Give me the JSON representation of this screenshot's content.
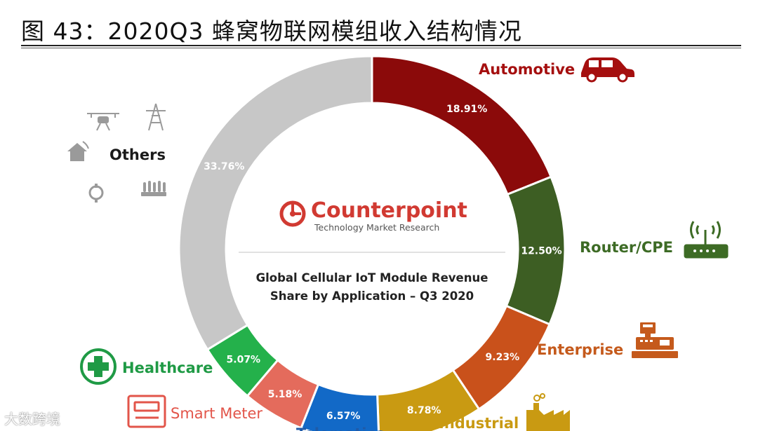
{
  "figure": {
    "title": "图 43：2020Q3 蜂窝物联网模组收入结构情况",
    "watermark": "大数跨境"
  },
  "chart_data": {
    "type": "pie",
    "subtype": "donut",
    "center_logo": "Counterpoint",
    "center_tagline": "Technology Market Research",
    "center_title_line1": "Global Cellular IoT Module Revenue",
    "center_title_line2": "Share by Application – Q3 2020",
    "slices": [
      {
        "label": "Automotive",
        "value": 18.91,
        "display": "18.91%",
        "color": "#8b0a0a",
        "label_color": "#a50f0f",
        "icon": "car-icon"
      },
      {
        "label": "Router/CPE",
        "value": 12.5,
        "display": "12.50%",
        "color": "#3d5e23",
        "label_color": "#3d6b25",
        "icon": "router-icon"
      },
      {
        "label": "Enterprise",
        "value": 9.23,
        "display": "9.23%",
        "color": "#c9511b",
        "label_color": "#c55a1c",
        "icon": "cash-register-icon"
      },
      {
        "label": "Industrial",
        "value": 8.78,
        "display": "8.78%",
        "color": "#c99a12",
        "label_color": "#c99a12",
        "icon": "factory-icon"
      },
      {
        "label": "Telematics",
        "value": 6.57,
        "display": "6.57%",
        "color": "#1269c7",
        "label_color": "#1f5aa8",
        "icon": "truck-icon"
      },
      {
        "label": "Smart Meter",
        "value": 5.18,
        "display": "5.18%",
        "color": "#e46b5c",
        "label_color": "#e2554a",
        "icon": "meter-icon"
      },
      {
        "label": "Healthcare",
        "value": 5.07,
        "display": "5.07%",
        "color": "#24b14b",
        "label_color": "#1f9a45",
        "icon": "medical-cross-icon"
      },
      {
        "label": "Others",
        "value": 33.76,
        "display": "33.76%",
        "color": "#c7c7c7",
        "label_color": "#1a1a1a",
        "icon": "others-icons"
      }
    ]
  }
}
